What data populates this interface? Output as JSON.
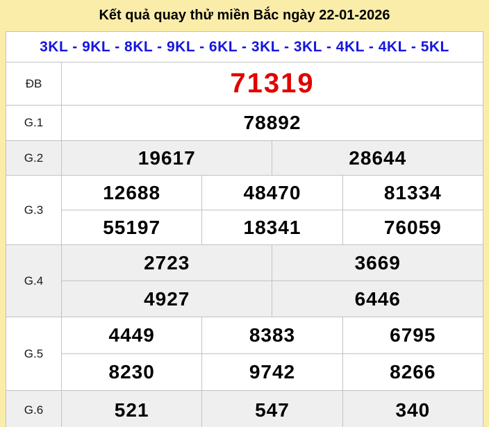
{
  "header": {
    "title": "Kết quả quay thử miền Bắc ngày 22-01-2026"
  },
  "kl_row": {
    "text": "3KL - 9KL - 8KL - 9KL - 6KL - 3KL - 3KL - 4KL - 4KL - 5KL"
  },
  "rows": [
    {
      "label": "ĐB",
      "cells": [
        [
          "71319"
        ]
      ]
    },
    {
      "label": "G.1",
      "cells": [
        [
          "78892"
        ]
      ]
    },
    {
      "label": "G.2",
      "cells": [
        [
          "19617",
          "28644"
        ]
      ]
    },
    {
      "label": "G.3",
      "cells": [
        [
          "12688",
          "48470",
          "81334"
        ],
        [
          "55197",
          "18341",
          "76059"
        ]
      ]
    },
    {
      "label": "G.4",
      "cells": [
        [
          "2723",
          "3669"
        ],
        [
          "4927",
          "6446"
        ]
      ]
    },
    {
      "label": "G.5",
      "cells": [
        [
          "4449",
          "8383",
          "6795"
        ],
        [
          "8230",
          "9742",
          "8266"
        ]
      ]
    },
    {
      "label": "G.6",
      "cells": [
        [
          "521",
          "547",
          "340"
        ]
      ]
    }
  ],
  "colors": {
    "page_background": "#FAEDA9",
    "table_background": "#FFFFFF",
    "shaded_row": "#EFEFEF",
    "border": "#C2C2C2",
    "title_text": "#000000",
    "kl_text": "#1616DC",
    "special_prize_text": "#E00000",
    "number_text": "#000000"
  }
}
